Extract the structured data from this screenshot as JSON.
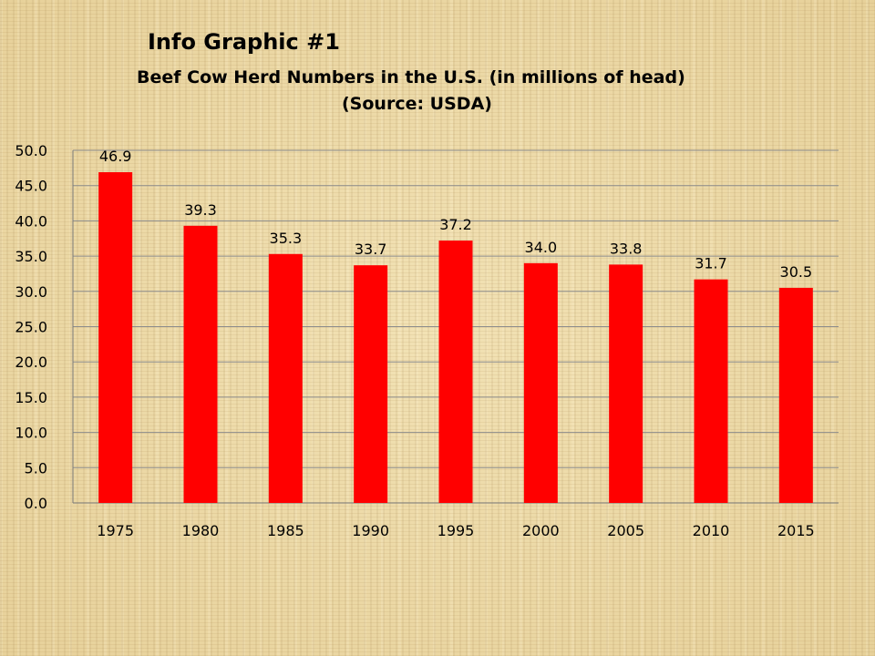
{
  "slide": {
    "heading": "Info Graphic #1",
    "subtitle": "Beef Cow Herd Numbers in the U.S. (in millions of head)",
    "source": "(Source: USDA)"
  },
  "chart_data": {
    "type": "bar",
    "title": "Beef Cow Herd Numbers in the U.S. (in millions of head)",
    "categories": [
      "1975",
      "1980",
      "1985",
      "1990",
      "1995",
      "2000",
      "2005",
      "2010",
      "2015"
    ],
    "values": [
      46.9,
      39.3,
      35.3,
      33.7,
      37.2,
      34.0,
      33.8,
      31.7,
      30.5
    ],
    "value_labels": [
      "46.9",
      "39.3",
      "35.3",
      "33.7",
      "37.2",
      "34.0",
      "33.8",
      "31.7",
      "30.5"
    ],
    "ylim": [
      0,
      50
    ],
    "yticks": [
      "0.0",
      "5.0",
      "10.0",
      "15.0",
      "20.0",
      "25.0",
      "30.0",
      "35.0",
      "40.0",
      "45.0",
      "50.0"
    ],
    "grid": true,
    "legend": "none",
    "bar_color": "#ff0000"
  }
}
